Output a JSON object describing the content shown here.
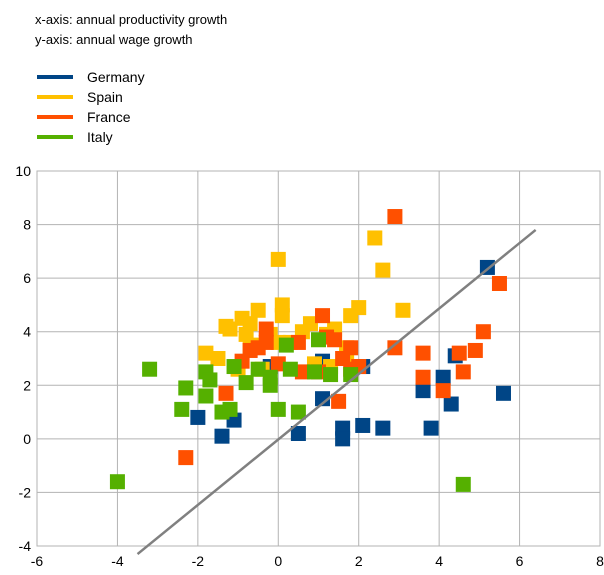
{
  "notes": {
    "x_axis": "x-axis: annual productivity growth",
    "y_axis": "y-axis: annual wage growth"
  },
  "legend": [
    {
      "label": "Germany",
      "color": "#004586"
    },
    {
      "label": "Spain",
      "color": "#ffc000"
    },
    {
      "label": "France",
      "color": "#ff5000"
    },
    {
      "label": "Italy",
      "color": "#55b000"
    }
  ],
  "chart_data": {
    "type": "scatter",
    "title": "",
    "xlabel": "",
    "ylabel": "",
    "xlim": [
      -6,
      8
    ],
    "ylim": [
      -4,
      10
    ],
    "xticks": [
      -6,
      -4,
      -2,
      0,
      2,
      4,
      6,
      8
    ],
    "yticks": [
      -4,
      -2,
      0,
      2,
      4,
      6,
      8,
      10
    ],
    "grid": true,
    "legend_position": "top-left",
    "reference_line": {
      "from": [
        -3.5,
        -4.3
      ],
      "to": [
        6.4,
        7.8
      ],
      "color": "#808080"
    },
    "series": [
      {
        "name": "Germany",
        "color": "#004586",
        "points": [
          [
            -2.0,
            0.8
          ],
          [
            -1.4,
            0.1
          ],
          [
            -1.1,
            0.7
          ],
          [
            -0.2,
            2.7
          ],
          [
            0.5,
            0.2
          ],
          [
            1.1,
            2.9
          ],
          [
            1.1,
            1.5
          ],
          [
            1.6,
            0.4
          ],
          [
            1.6,
            0.0
          ],
          [
            2.1,
            0.5
          ],
          [
            2.1,
            2.7
          ],
          [
            2.6,
            0.4
          ],
          [
            3.6,
            1.8
          ],
          [
            3.8,
            0.4
          ],
          [
            4.1,
            2.3
          ],
          [
            4.3,
            1.3
          ],
          [
            4.4,
            3.1
          ],
          [
            5.2,
            6.4
          ],
          [
            5.6,
            1.7
          ]
        ]
      },
      {
        "name": "Spain",
        "color": "#ffc000",
        "points": [
          [
            -1.8,
            3.2
          ],
          [
            -1.5,
            3.0
          ],
          [
            -1.3,
            4.2
          ],
          [
            -1.2,
            4.1
          ],
          [
            -1.0,
            2.6
          ],
          [
            -0.9,
            4.5
          ],
          [
            -0.8,
            3.9
          ],
          [
            -0.7,
            3.4
          ],
          [
            -0.7,
            4.3
          ],
          [
            -0.6,
            3.5
          ],
          [
            -0.5,
            4.8
          ],
          [
            -0.4,
            2.6
          ],
          [
            -0.2,
            3.9
          ],
          [
            0.0,
            6.7
          ],
          [
            0.0,
            3.6
          ],
          [
            0.1,
            4.6
          ],
          [
            0.1,
            5.0
          ],
          [
            0.3,
            3.6
          ],
          [
            0.6,
            4.0
          ],
          [
            0.8,
            4.3
          ],
          [
            0.9,
            2.8
          ],
          [
            1.2,
            3.9
          ],
          [
            1.3,
            2.7
          ],
          [
            1.4,
            4.1
          ],
          [
            1.7,
            3.1
          ],
          [
            1.7,
            3.4
          ],
          [
            1.8,
            4.6
          ],
          [
            2.0,
            4.9
          ],
          [
            2.4,
            7.5
          ],
          [
            2.6,
            6.3
          ],
          [
            3.1,
            4.8
          ]
        ]
      },
      {
        "name": "France",
        "color": "#ff5000",
        "points": [
          [
            -2.3,
            -0.7
          ],
          [
            -1.3,
            1.7
          ],
          [
            -0.9,
            2.9
          ],
          [
            -0.7,
            3.3
          ],
          [
            -0.5,
            3.4
          ],
          [
            -0.3,
            3.6
          ],
          [
            -0.3,
            4.1
          ],
          [
            0.0,
            2.8
          ],
          [
            0.5,
            3.6
          ],
          [
            0.6,
            2.5
          ],
          [
            1.0,
            2.5
          ],
          [
            1.1,
            4.6
          ],
          [
            1.2,
            3.8
          ],
          [
            1.4,
            3.7
          ],
          [
            1.5,
            1.4
          ],
          [
            1.6,
            3.0
          ],
          [
            1.8,
            3.4
          ],
          [
            1.8,
            2.6
          ],
          [
            2.0,
            2.7
          ],
          [
            2.9,
            3.4
          ],
          [
            2.9,
            8.3
          ],
          [
            3.6,
            3.2
          ],
          [
            3.6,
            2.3
          ],
          [
            4.1,
            1.8
          ],
          [
            4.5,
            3.2
          ],
          [
            4.6,
            2.5
          ],
          [
            4.9,
            3.3
          ],
          [
            5.1,
            4.0
          ],
          [
            5.5,
            5.8
          ]
        ]
      },
      {
        "name": "Italy",
        "color": "#55b000",
        "points": [
          [
            -4.0,
            -1.6
          ],
          [
            -3.2,
            2.6
          ],
          [
            -2.4,
            1.1
          ],
          [
            -2.3,
            1.9
          ],
          [
            -1.8,
            2.5
          ],
          [
            -1.8,
            1.6
          ],
          [
            -1.7,
            2.2
          ],
          [
            -1.4,
            1.0
          ],
          [
            -1.2,
            1.1
          ],
          [
            -1.1,
            2.7
          ],
          [
            -0.8,
            2.1
          ],
          [
            -0.5,
            2.6
          ],
          [
            -0.2,
            2.3
          ],
          [
            -0.2,
            2.0
          ],
          [
            0.0,
            1.1
          ],
          [
            0.2,
            3.5
          ],
          [
            0.3,
            2.6
          ],
          [
            0.5,
            1.0
          ],
          [
            0.9,
            2.5
          ],
          [
            1.0,
            3.7
          ],
          [
            1.3,
            2.4
          ],
          [
            1.8,
            2.4
          ],
          [
            4.6,
            -1.7
          ]
        ]
      }
    ]
  }
}
